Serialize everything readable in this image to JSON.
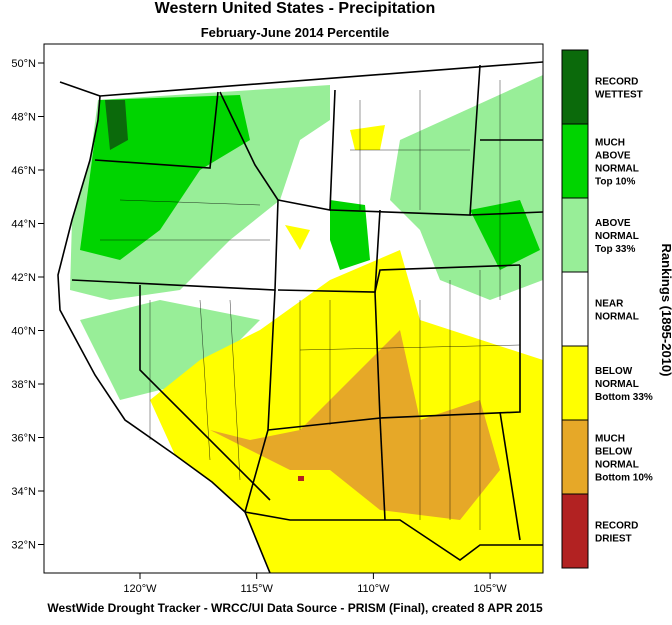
{
  "header": {
    "title": "Western United States - Precipitation",
    "subtitle": "February-June 2014 Percentile"
  },
  "map": {
    "lat_labels": [
      "50°N",
      "48°N",
      "46°N",
      "44°N",
      "42°N",
      "40°N",
      "38°N",
      "36°N",
      "34°N",
      "32°N"
    ],
    "lon_labels": [
      "120°W",
      "115°W",
      "110°W",
      "105°W"
    ]
  },
  "legend": {
    "title": "Rankings (1895-2010)",
    "items": [
      {
        "lines": [
          "RECORD",
          "WETTEST"
        ],
        "color": "#0b6a0b"
      },
      {
        "lines": [
          "MUCH",
          "ABOVE",
          "NORMAL",
          "Top 10%"
        ],
        "color": "#00d400"
      },
      {
        "lines": [
          "ABOVE",
          "NORMAL",
          "Top 33%"
        ],
        "color": "#98ee98"
      },
      {
        "lines": [
          "NEAR",
          "NORMAL"
        ],
        "color": "#ffffff"
      },
      {
        "lines": [
          "BELOW",
          "NORMAL",
          "Bottom 33%"
        ],
        "color": "#ffff00"
      },
      {
        "lines": [
          "MUCH",
          "BELOW",
          "NORMAL",
          "Bottom 10%"
        ],
        "color": "#e6a828"
      },
      {
        "lines": [
          "RECORD",
          "DRIEST"
        ],
        "color": "#b22222"
      }
    ]
  },
  "footer": "WestWide Drought Tracker - WRCC/UI  Data Source - PRISM (Final), created  8 APR 2015"
}
